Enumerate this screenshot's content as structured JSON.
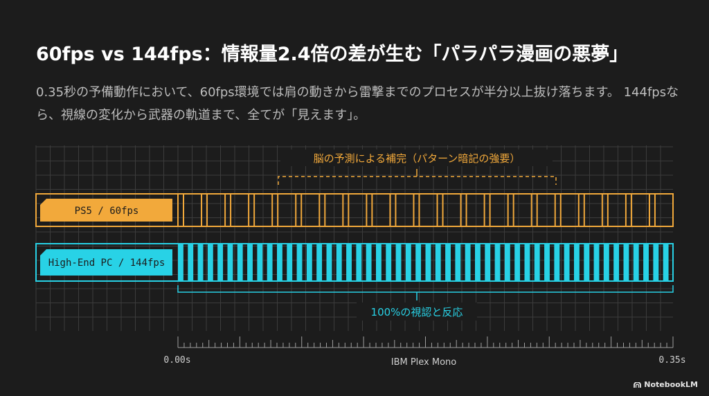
{
  "title": "60fps vs 144fps：情報量2.4倍の差が生む「パラパラ漫画の悪夢」",
  "subtitle": "0.35秒の予備動作において、60fps環境では肩の動きから雷撃までのプロセスが半分以上抜け落ちます。 144fpsなら、視線の変化から武器の軌道まで、全てが「見えます」。",
  "diagram": {
    "top_bracket_label": "脳の予測による補完（パターン暗記の強要）",
    "bottom_bracket_label": "100%の視認と反応",
    "row_60_label": "PS5 / 60fps",
    "row_144_label": "High-End PC / 144fps",
    "axis_start_label": "0.00s",
    "axis_end_label": "0.35s",
    "axis_center_label": "IBM Plex Mono",
    "colors": {
      "orange": "#f2a93b",
      "cyan": "#28d2e6",
      "grid": "#444444",
      "background": "#1c1c1c"
    }
  },
  "branding": {
    "label": "NotebookLM",
    "icon": "notebooklm-logo-icon"
  }
}
